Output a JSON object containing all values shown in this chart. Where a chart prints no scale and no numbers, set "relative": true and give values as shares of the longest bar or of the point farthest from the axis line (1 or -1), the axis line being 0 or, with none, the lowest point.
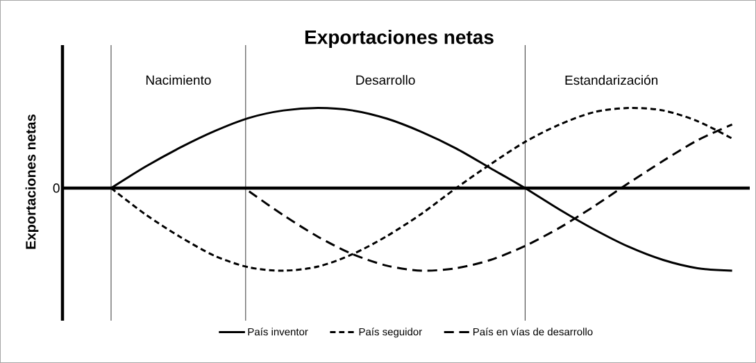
{
  "chart_data": {
    "type": "line",
    "title": "Exportaciones netas",
    "ylabel": "Exportaciones netas",
    "relative": true,
    "categories": [
      null,
      null,
      null,
      null,
      null,
      null,
      null,
      null,
      null,
      null,
      null,
      null,
      null,
      null,
      null,
      null,
      null,
      null,
      null
    ],
    "series": [
      {
        "name": "País inventor",
        "color": "#000000",
        "line_style": "solid",
        "values": [
          0,
          0.26,
          0.49,
          0.69,
          0.85,
          0.94,
          0.97,
          0.94,
          0.84,
          0.68,
          0.48,
          0.24,
          0,
          -0.26,
          -0.5,
          -0.71,
          -0.87,
          -0.97,
          -1
        ]
      },
      {
        "name": "País seguidor",
        "color": "#000000",
        "line_style": "dotted",
        "values": [
          0,
          -0.32,
          -0.59,
          -0.82,
          -0.96,
          -1,
          -0.95,
          -0.8,
          -0.58,
          -0.31,
          0,
          0.29,
          0.56,
          0.77,
          0.92,
          0.97,
          0.94,
          0.81,
          0.6
        ]
      },
      {
        "name": "País en vías de desarrollo",
        "color": "#000000",
        "line_style": "dashed",
        "values": [
          null,
          null,
          null,
          null,
          -0.04,
          -0.33,
          -0.59,
          -0.8,
          -0.94,
          -1,
          -0.97,
          -0.87,
          -0.7,
          -0.48,
          -0.22,
          0.06,
          0.33,
          0.58,
          0.77
        ]
      }
    ],
    "annotations": [
      "0",
      "Nacimiento",
      "Desarrollo",
      "Estandarización"
    ],
    "legend": "bottom",
    "marker": "none"
  }
}
